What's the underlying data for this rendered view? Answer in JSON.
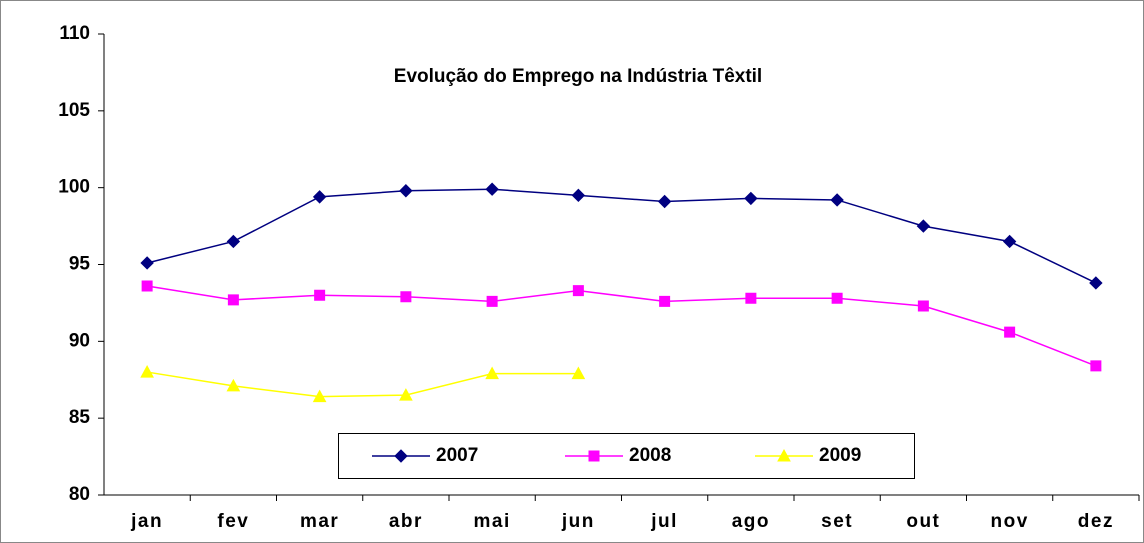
{
  "chart_data": {
    "type": "line",
    "title": "Evolução do Emprego na Indústria Têxtil",
    "categories": [
      "jan",
      "fev",
      "mar",
      "abr",
      "mai",
      "jun",
      "jul",
      "ago",
      "set",
      "out",
      "nov",
      "dez"
    ],
    "series": [
      {
        "name": "2007",
        "color": "#000080",
        "marker": "diamond",
        "values": [
          95.1,
          96.5,
          99.4,
          99.8,
          99.9,
          99.5,
          99.1,
          99.3,
          99.2,
          97.5,
          96.5,
          93.8
        ]
      },
      {
        "name": "2008",
        "color": "#ff00ff",
        "marker": "square",
        "values": [
          93.6,
          92.7,
          93.0,
          92.9,
          92.6,
          93.3,
          92.6,
          92.8,
          92.8,
          92.3,
          90.6,
          88.4
        ]
      },
      {
        "name": "2009",
        "color": "#ffff00",
        "marker": "triangle",
        "values": [
          88.0,
          87.1,
          86.4,
          86.5,
          87.9,
          87.9,
          null,
          null,
          null,
          null,
          null,
          null
        ]
      }
    ],
    "ylim": [
      80,
      110
    ],
    "yticks": [
      80,
      85,
      90,
      95,
      100,
      105,
      110
    ],
    "grid": false,
    "legend": "bottom"
  }
}
